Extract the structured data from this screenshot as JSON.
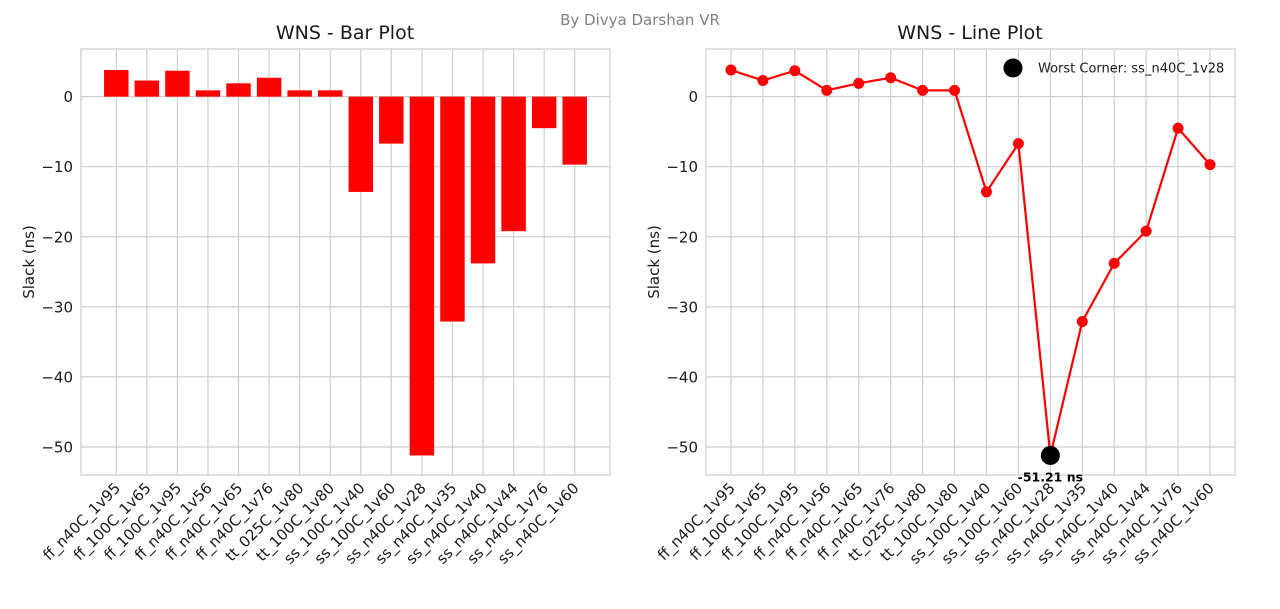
{
  "figure": {
    "author": "By Divya Darshan VR"
  },
  "chart_data": [
    {
      "type": "bar",
      "title": "WNS - Bar Plot",
      "xlabel": "",
      "ylabel": "Slack (ns)",
      "categories": [
        "ff_n40C_1v95",
        "ff_100C_1v65",
        "ff_100C_1v95",
        "ff_n40C_1v56",
        "ff_n40C_1v65",
        "ff_n40C_1v76",
        "tt_025C_1v80",
        "tt_100C_1v80",
        "ss_100C_1v40",
        "ss_100C_1v60",
        "ss_n40C_1v28",
        "ss_n40C_1v35",
        "ss_n40C_1v40",
        "ss_n40C_1v44",
        "ss_n40C_1v76",
        "ss_n40C_1v60"
      ],
      "values": [
        3.8,
        2.3,
        3.7,
        0.9,
        1.9,
        2.7,
        0.9,
        0.9,
        -13.6,
        -6.7,
        -51.21,
        -32.1,
        -23.8,
        -19.2,
        -4.5,
        -9.7
      ],
      "ylim": [
        -54,
        6.8
      ],
      "yticks": [
        0,
        -10,
        -20,
        -30,
        -40,
        -50
      ],
      "grid": true,
      "color": "#ff0000"
    },
    {
      "type": "line",
      "title": "WNS - Line Plot",
      "xlabel": "",
      "ylabel": "Slack (ns)",
      "categories": [
        "ff_n40C_1v95",
        "ff_100C_1v65",
        "ff_100C_1v95",
        "ff_n40C_1v56",
        "ff_n40C_1v65",
        "ff_n40C_1v76",
        "tt_025C_1v80",
        "tt_100C_1v80",
        "ss_100C_1v40",
        "ss_100C_1v60",
        "ss_n40C_1v28",
        "ss_n40C_1v35",
        "ss_n40C_1v40",
        "ss_n40C_1v44",
        "ss_n40C_1v76",
        "ss_n40C_1v60"
      ],
      "values": [
        3.8,
        2.3,
        3.7,
        0.9,
        1.9,
        2.7,
        0.9,
        0.9,
        -13.6,
        -6.7,
        -51.21,
        -32.1,
        -23.8,
        -19.2,
        -4.5,
        -9.7
      ],
      "ylim": [
        -54,
        6.8
      ],
      "yticks": [
        0,
        -10,
        -20,
        -30,
        -40,
        -50
      ],
      "grid": true,
      "color": "#ff0000",
      "worst": {
        "category": "ss_n40C_1v28",
        "value": -51.21,
        "label": "-51.21 ns",
        "legend": "Worst Corner: ss_n40C_1v28",
        "color": "#000000"
      },
      "legend_position": "top-right"
    }
  ]
}
